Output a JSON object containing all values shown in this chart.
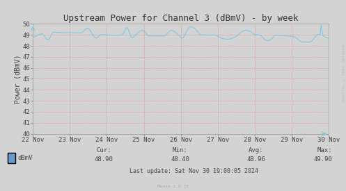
{
  "title": "Upstream Power for Channel 3 (dBmV) - by week",
  "ylabel": "Power (dBmV)",
  "ylim": [
    40,
    50
  ],
  "yticks": [
    40,
    41,
    42,
    43,
    44,
    45,
    46,
    47,
    48,
    49,
    50
  ],
  "bg_color": "#d3d3d3",
  "plot_bg_color": "#d3d3d3",
  "grid_color": "#e87070",
  "line_color": "#7ec8e3",
  "legend_label": "dBmV",
  "legend_color": "#6699cc",
  "cur_val": "48.90",
  "min_val": "48.40",
  "avg_val": "48.96",
  "max_val": "49.90",
  "last_update": "Last update: Sat Nov 30 19:00:05 2024",
  "munin_label": "Munin 2.0.75",
  "watermark": "RRDTOOL / TOBI OETIKER",
  "xtick_labels": [
    "22 Nov",
    "23 Nov",
    "24 Nov",
    "25 Nov",
    "26 Nov",
    "27 Nov",
    "28 Nov",
    "29 Nov",
    "30 Nov"
  ],
  "title_fontsize": 9,
  "axis_fontsize": 7,
  "tick_fontsize": 6.5,
  "footer_fontsize": 6.5
}
